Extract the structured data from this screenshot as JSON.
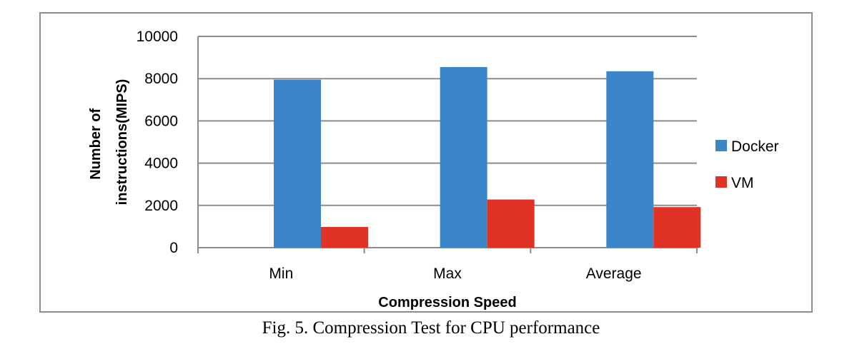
{
  "chart_data": {
    "type": "bar",
    "categories": [
      "Min",
      "Max",
      "Average"
    ],
    "series": [
      {
        "name": "Docker",
        "values": [
          7950,
          8550,
          8350
        ],
        "color": "#3b86c9"
      },
      {
        "name": "VM",
        "values": [
          980,
          2280,
          1920
        ],
        "color": "#e03325"
      }
    ],
    "xlabel": "Compression Speed",
    "ylabel": [
      "Number of",
      "instructions(MIPS)"
    ],
    "ylim": [
      0,
      10000
    ],
    "yticks": [
      0,
      2000,
      4000,
      6000,
      8000,
      10000
    ],
    "grid": true,
    "legend_position": "right"
  },
  "caption": "Fig. 5. Compression Test for CPU performance"
}
